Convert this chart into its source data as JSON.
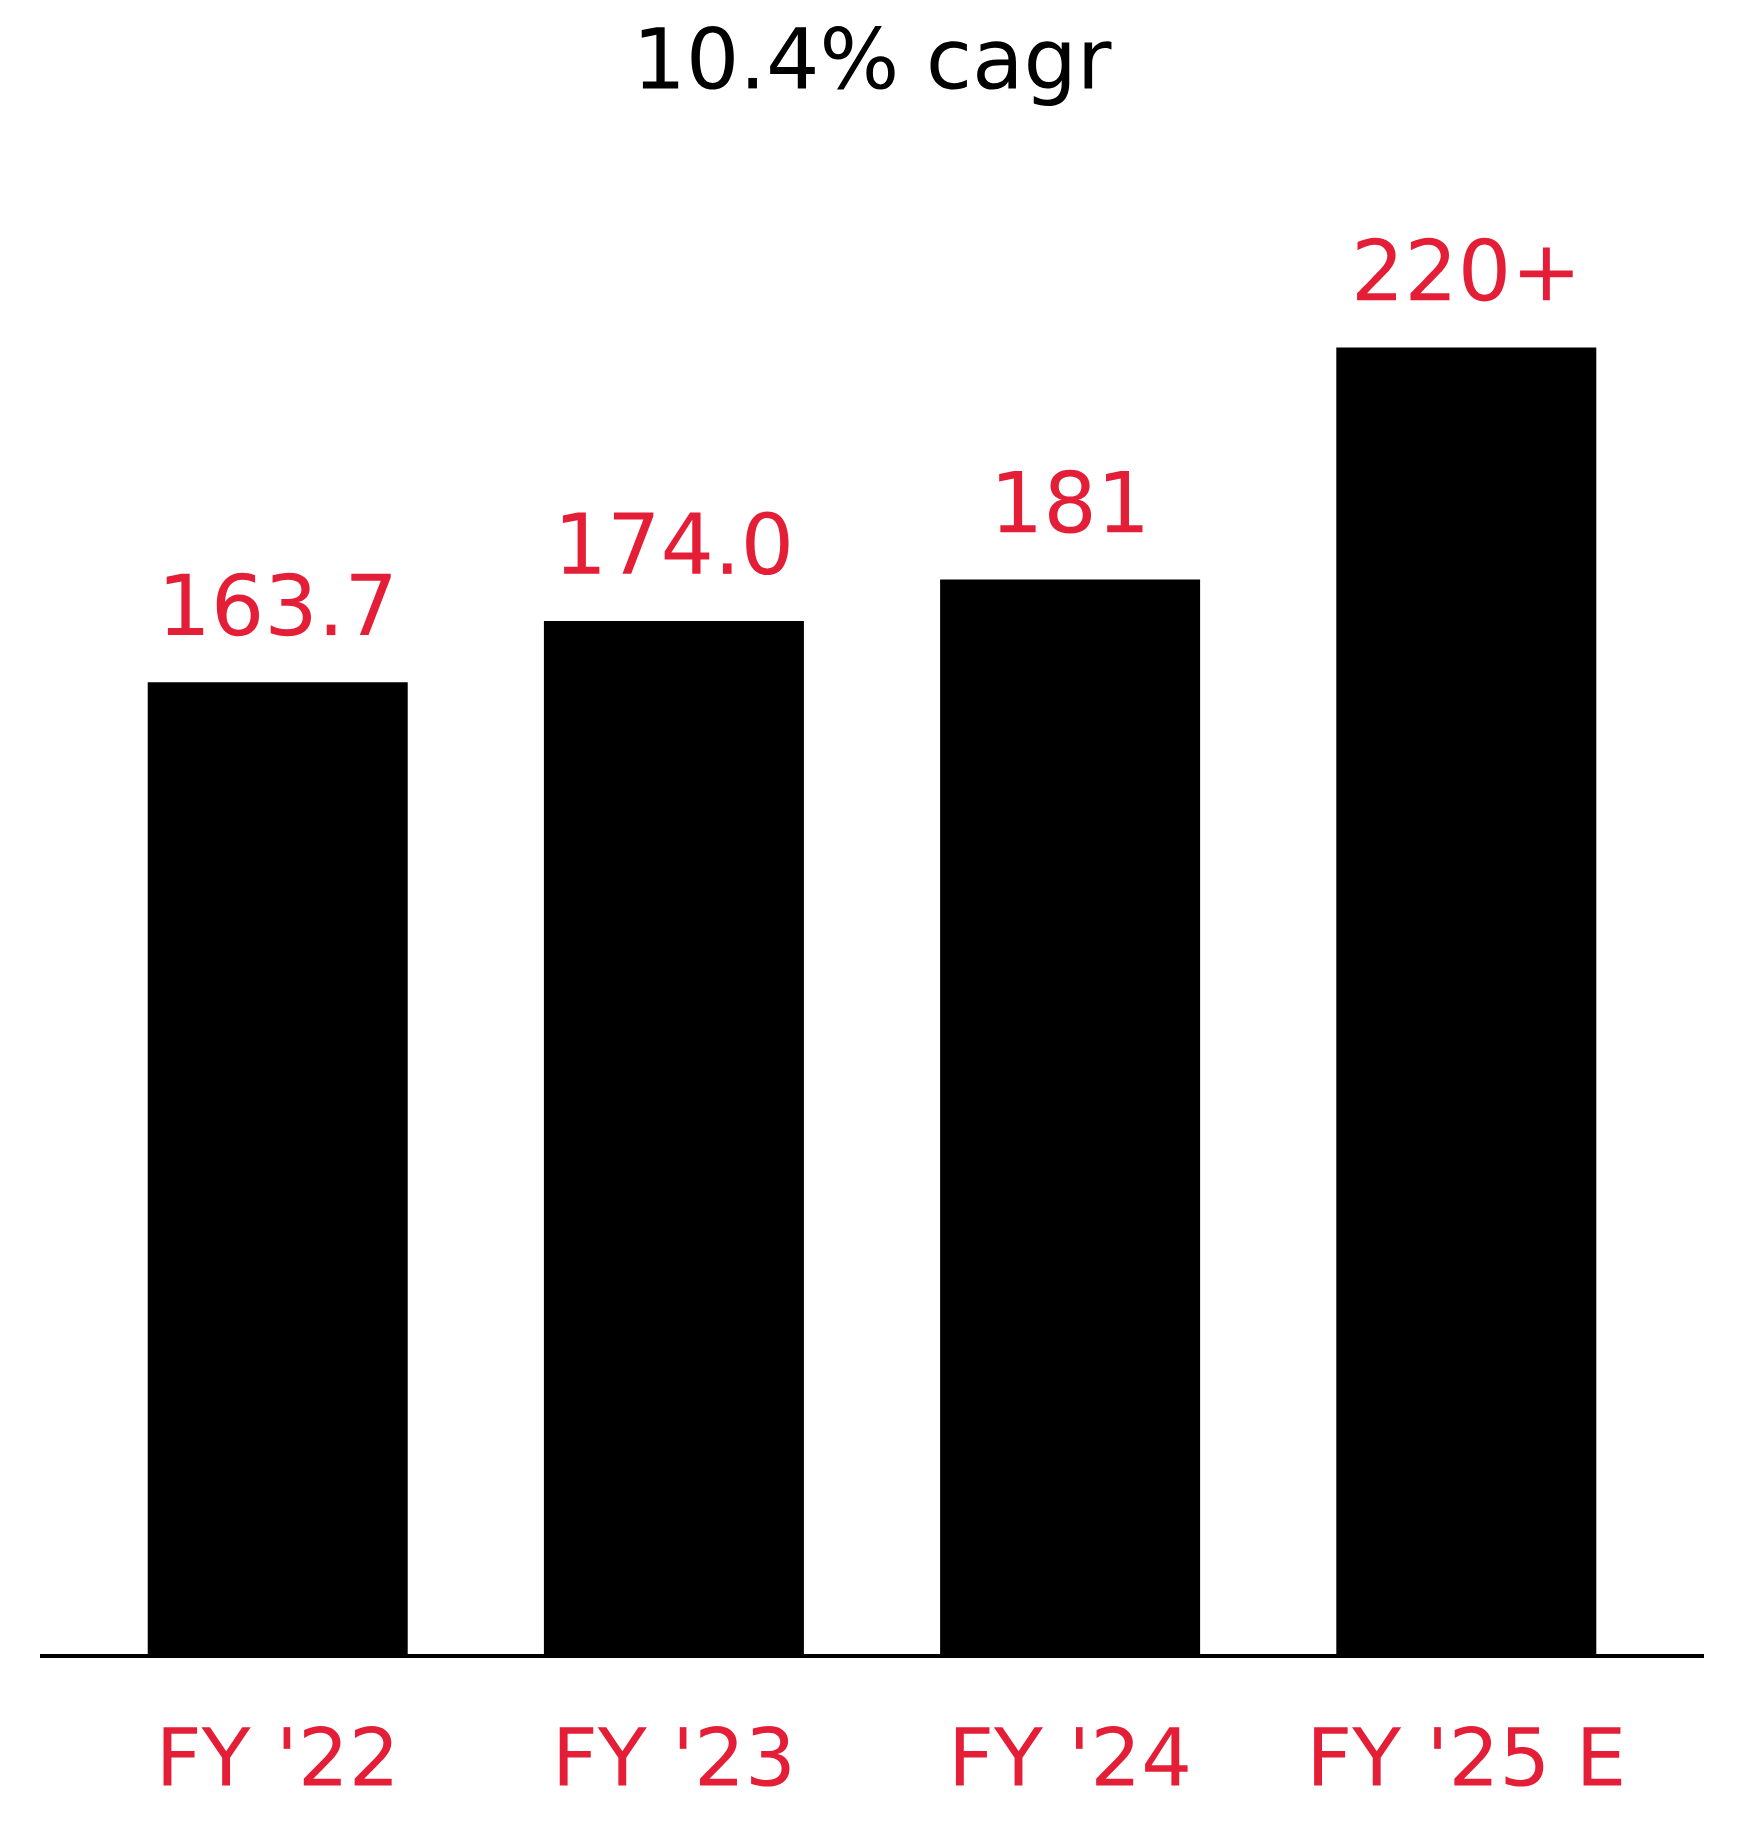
{
  "chart_data": {
    "type": "bar",
    "title": "10.4% cagr",
    "categories": [
      "FY '22",
      "FY '23",
      "FY '24",
      "FY '25 E"
    ],
    "values": [
      163.7,
      174.0,
      181,
      220
    ],
    "value_labels": [
      "163.7",
      "174.0",
      "181",
      "220+"
    ],
    "color": "#000000",
    "tick_labels": "x"
  }
}
